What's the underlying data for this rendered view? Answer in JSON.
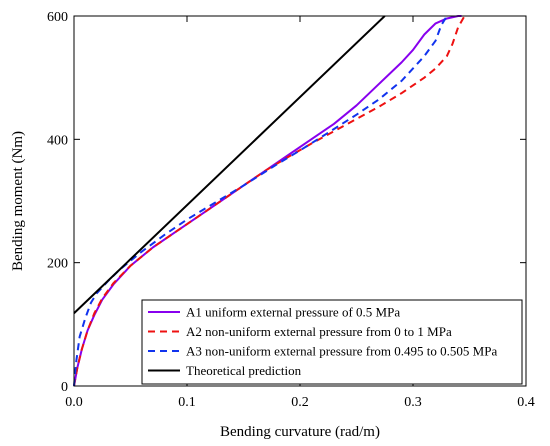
{
  "chart_data": {
    "type": "line",
    "xlabel": "Bending curvature (rad/m)",
    "ylabel": "Bending moment (Nm)",
    "xlim": [
      0.0,
      0.4
    ],
    "ylim": [
      0,
      600
    ],
    "x_ticks": [
      0.0,
      0.1,
      0.2,
      0.3,
      0.4
    ],
    "x_tick_labels": [
      "0.0",
      "0.1",
      "0.2",
      "0.3",
      "0.4"
    ],
    "y_ticks": [
      0,
      200,
      400,
      600
    ],
    "y_tick_labels": [
      "0",
      "200",
      "400",
      "600"
    ],
    "grid": false,
    "legend_position": "lower-right",
    "series": [
      {
        "name": "A1 uniform external pressure of 0.5 MPa",
        "color": "#8800ee",
        "dash": "solid",
        "x": [
          0.0,
          0.003,
          0.007,
          0.012,
          0.018,
          0.025,
          0.035,
          0.05,
          0.07,
          0.09,
          0.11,
          0.13,
          0.15,
          0.17,
          0.19,
          0.21,
          0.23,
          0.25,
          0.27,
          0.29,
          0.3,
          0.31,
          0.32,
          0.33,
          0.34,
          0.343
        ],
        "y": [
          0,
          30,
          60,
          90,
          115,
          140,
          165,
          195,
          225,
          250,
          275,
          300,
          325,
          350,
          375,
          400,
          425,
          455,
          490,
          525,
          545,
          570,
          588,
          596,
          600,
          600
        ]
      },
      {
        "name": "A2 non-uniform external pressure from 0 to 1 MPa",
        "color": "#ee1111",
        "dash": "dashed",
        "x": [
          0.0,
          0.003,
          0.007,
          0.012,
          0.018,
          0.025,
          0.035,
          0.05,
          0.07,
          0.09,
          0.11,
          0.13,
          0.15,
          0.17,
          0.19,
          0.21,
          0.23,
          0.25,
          0.27,
          0.29,
          0.31,
          0.32,
          0.33,
          0.335,
          0.34,
          0.345,
          0.348
        ],
        "y": [
          0,
          30,
          60,
          90,
          118,
          142,
          167,
          195,
          225,
          250,
          275,
          300,
          325,
          350,
          372,
          393,
          413,
          433,
          453,
          475,
          500,
          515,
          535,
          555,
          582,
          598,
          600
        ]
      },
      {
        "name": "A3 non-uniform external pressure from 0.495 to 0.505 MPa",
        "color": "#1133ee",
        "dash": "dashed",
        "x": [
          0.0,
          0.002,
          0.005,
          0.01,
          0.015,
          0.02,
          0.03,
          0.04,
          0.06,
          0.08,
          0.1,
          0.12,
          0.15,
          0.18,
          0.2,
          0.22,
          0.25,
          0.27,
          0.29,
          0.3,
          0.31,
          0.32,
          0.325,
          0.33
        ],
        "y": [
          0,
          40,
          80,
          110,
          135,
          150,
          170,
          188,
          218,
          245,
          270,
          292,
          325,
          360,
          382,
          405,
          440,
          465,
          495,
          515,
          535,
          560,
          585,
          600
        ]
      },
      {
        "name": "Theoretical prediction",
        "color": "#000000",
        "dash": "solid",
        "x": [
          0.0,
          0.275
        ],
        "y": [
          118,
          600
        ]
      }
    ]
  }
}
